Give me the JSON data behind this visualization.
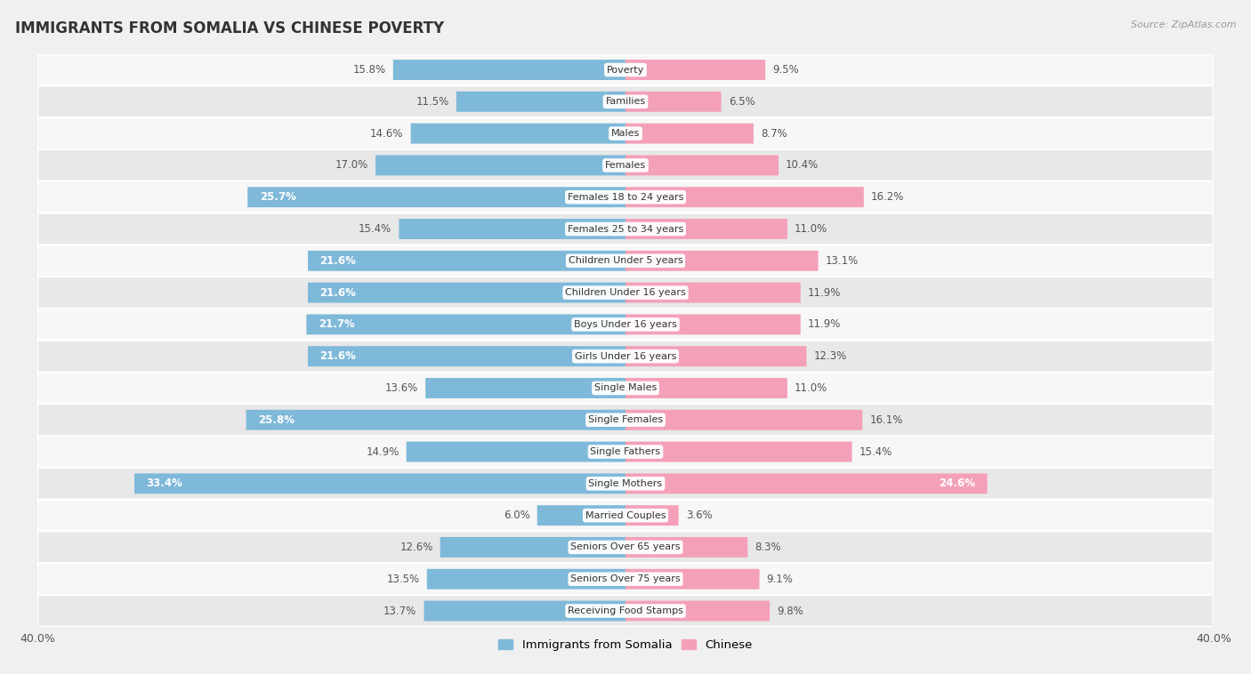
{
  "title": "IMMIGRANTS FROM SOMALIA VS CHINESE POVERTY",
  "source": "Source: ZipAtlas.com",
  "categories": [
    "Poverty",
    "Families",
    "Males",
    "Females",
    "Females 18 to 24 years",
    "Females 25 to 34 years",
    "Children Under 5 years",
    "Children Under 16 years",
    "Boys Under 16 years",
    "Girls Under 16 years",
    "Single Males",
    "Single Females",
    "Single Fathers",
    "Single Mothers",
    "Married Couples",
    "Seniors Over 65 years",
    "Seniors Over 75 years",
    "Receiving Food Stamps"
  ],
  "somalia_values": [
    15.8,
    11.5,
    14.6,
    17.0,
    25.7,
    15.4,
    21.6,
    21.6,
    21.7,
    21.6,
    13.6,
    25.8,
    14.9,
    33.4,
    6.0,
    12.6,
    13.5,
    13.7
  ],
  "chinese_values": [
    9.5,
    6.5,
    8.7,
    10.4,
    16.2,
    11.0,
    13.1,
    11.9,
    11.9,
    12.3,
    11.0,
    16.1,
    15.4,
    24.6,
    3.6,
    8.3,
    9.1,
    9.8
  ],
  "somalia_color": "#7fb9d9",
  "chinese_color": "#f4a0b8",
  "background_color": "#f0f0f0",
  "row_light_color": "#f7f7f7",
  "row_dark_color": "#e8e8e8",
  "xlim": 40.0,
  "bar_height": 0.62,
  "title_fontsize": 12,
  "label_fontsize": 8.5,
  "tick_fontsize": 9,
  "legend_fontsize": 9.5,
  "cat_label_fontsize": 8,
  "value_label_color": "#555555",
  "cat_label_color": "#333333",
  "highlight_somalia": [
    4,
    11,
    13
  ],
  "highlight_chinese": [
    13
  ]
}
